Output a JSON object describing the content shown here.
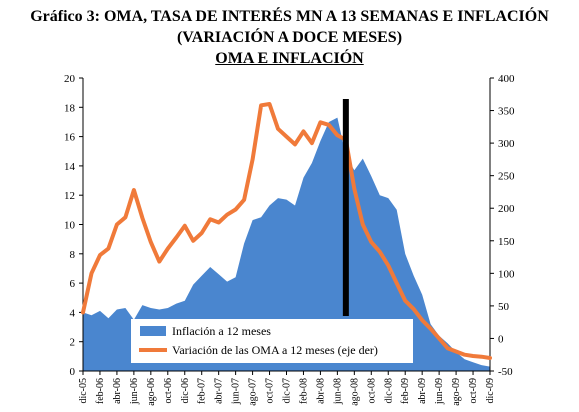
{
  "title_line1": "Gráfico 3: OMA, TASA DE INTERÉS MN A 13 SEMANAS E INFLACIÓN",
  "title_line2": "(VARIACIÓN A DOCE MESES)",
  "title_line3": "OMA  E  INFLACIÓN",
  "chart_data": {
    "type": "area",
    "title": "OMA  E  INFLACIÓN",
    "x_tick_labels": [
      "dic-05",
      "feb-06",
      "abr-06",
      "jun-06",
      "ago-06",
      "oct-06",
      "dic-06",
      "feb-07",
      "abr-07",
      "jun-07",
      "ago-07",
      "oct-07",
      "dic-07",
      "feb-08",
      "abr-08",
      "jun-08",
      "ago-08",
      "oct-08",
      "dic-08",
      "feb-09",
      "abr-09",
      "jun-09",
      "ago-09",
      "oct-09",
      "dic-09"
    ],
    "x": [
      "dic-05",
      "ene-06",
      "feb-06",
      "mar-06",
      "abr-06",
      "may-06",
      "jun-06",
      "jul-06",
      "ago-06",
      "sep-06",
      "oct-06",
      "nov-06",
      "dic-06",
      "ene-07",
      "feb-07",
      "mar-07",
      "abr-07",
      "may-07",
      "jun-07",
      "jul-07",
      "ago-07",
      "sep-07",
      "oct-07",
      "nov-07",
      "dic-07",
      "ene-08",
      "feb-08",
      "mar-08",
      "abr-08",
      "may-08",
      "jun-08",
      "jul-08",
      "ago-08",
      "sep-08",
      "oct-08",
      "nov-08",
      "dic-08",
      "ene-09",
      "feb-09",
      "mar-09",
      "abr-09",
      "may-09",
      "jun-09",
      "jul-09",
      "ago-09",
      "sep-09",
      "oct-09",
      "nov-09",
      "dic-09"
    ],
    "y_left": {
      "min": 0,
      "max": 20,
      "step": 2
    },
    "y_right": {
      "min": -50,
      "max": 400,
      "step": 50
    },
    "series": [
      {
        "name": "Inflación a 12 meses",
        "axis": "left",
        "type": "area",
        "color": "#4a86cf",
        "values": [
          4.0,
          3.8,
          4.1,
          3.6,
          4.2,
          4.3,
          3.5,
          4.5,
          4.3,
          4.2,
          4.3,
          4.6,
          4.8,
          5.9,
          6.5,
          7.1,
          6.6,
          6.1,
          6.4,
          8.7,
          10.3,
          10.5,
          11.3,
          11.8,
          11.7,
          11.3,
          13.2,
          14.2,
          15.7,
          17.0,
          17.3,
          14.7,
          13.7,
          14.5,
          13.3,
          12.0,
          11.8,
          11.0,
          8.0,
          6.5,
          5.2,
          3.2,
          2.4,
          1.9,
          1.3,
          0.8,
          0.6,
          0.4,
          0.3
        ]
      },
      {
        "name": "Variación de las OMA a  12 meses (eje der)",
        "axis": "right",
        "type": "line",
        "color": "#f07a3a",
        "values": [
          40,
          100,
          128,
          138,
          175,
          186,
          228,
          185,
          148,
          118,
          138,
          155,
          173,
          150,
          162,
          183,
          178,
          190,
          198,
          213,
          275,
          358,
          360,
          322,
          310,
          298,
          318,
          300,
          332,
          328,
          312,
          305,
          230,
          175,
          148,
          133,
          112,
          85,
          58,
          45,
          28,
          15,
          0,
          -15,
          -20,
          -25,
          -27,
          -28,
          -30
        ]
      }
    ],
    "annotation": {
      "type": "vertical-bar",
      "at": "jul-08",
      "color": "#000000"
    },
    "legend": {
      "position": "bottom",
      "entries": [
        "Inflación a 12 meses",
        "Variación de las OMA a  12 meses (eje der)"
      ]
    },
    "grid": false
  }
}
